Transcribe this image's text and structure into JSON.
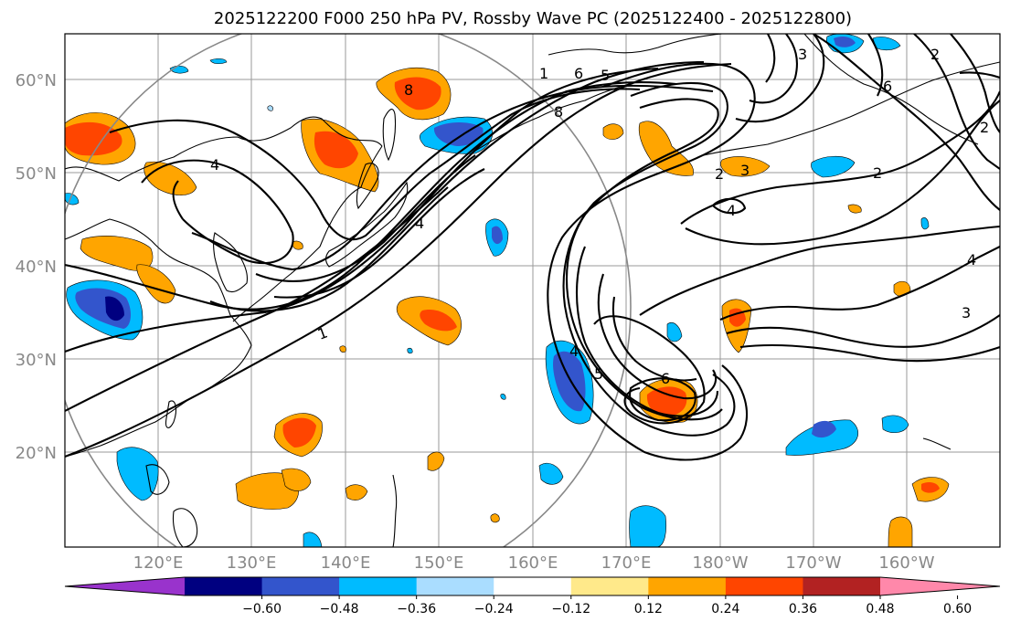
{
  "title": "2025122200 F000 250 hPa PV, Rossby Wave PC (2025122400 - 2025122800)",
  "lat_labels": [
    "60°N",
    "50°N",
    "40°N",
    "30°N",
    "20°N"
  ],
  "lon_labels": [
    "120°E",
    "130°E",
    "140°E",
    "150°E",
    "160°E",
    "170°E",
    "180°W",
    "170°W",
    "160°W"
  ],
  "colorbar": {
    "ticks": [
      "−0.60",
      "−0.48",
      "−0.36",
      "−0.24",
      "−0.12",
      "0.12",
      "0.24",
      "0.36",
      "0.48",
      "0.60"
    ],
    "colors": [
      "#9933cc",
      "#000080",
      "#3355cc",
      "#00bbff",
      "#aaddff",
      "#ffffff",
      "#ffe98a",
      "#ffa500",
      "#ff4500",
      "#b22222",
      "#ff88aa"
    ]
  },
  "contour_labels": [
    "1",
    "2",
    "3",
    "4",
    "5",
    "6",
    "8"
  ]
}
